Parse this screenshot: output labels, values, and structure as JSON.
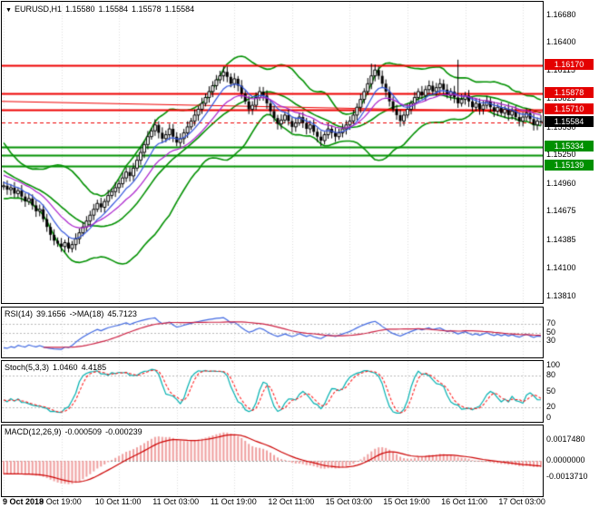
{
  "title": {
    "dropdown_icon": "▼",
    "symbol": "EURUSD,H1",
    "open": "1.15580",
    "high": "1.15584",
    "low": "1.15578",
    "close": "1.15584"
  },
  "panes": {
    "rsi": {
      "name": "RSI(14)",
      "value": "39.1656",
      "ma_name": "->MA(18)",
      "ma_value": "45.7123",
      "axis_labels": [
        "70",
        "50",
        "30"
      ],
      "grid_levels": [
        70,
        50,
        30
      ],
      "range": [
        0,
        100
      ],
      "line_color": "#4169e1",
      "ma_color": "#cc2244"
    },
    "stoch": {
      "name": "Stoch(5,3,3)",
      "value": "1.0460",
      "signal_value": "4.4185",
      "axis_labels": [
        "100",
        "80",
        "50",
        "20",
        "0"
      ],
      "grid_levels": [
        80,
        20
      ],
      "range": [
        0,
        100
      ],
      "k_color": "#00b0b0",
      "d_color": "#ff2222"
    },
    "macd": {
      "name": "MACD(12,26,9)",
      "value": "-0.000509",
      "signal_value": "-0.000239",
      "axis_labels": [
        "0.0017480",
        "0.0000000",
        "-0.0013710"
      ],
      "bar_color": "#ef9f9f",
      "line_color": "#cc0000"
    }
  },
  "chart_data": {
    "type": "candlestick",
    "symbol": "EURUSD",
    "timeframe": "H1",
    "indicators": {
      "rsi_period": 14,
      "rsi_ma_period": 18,
      "stoch": [
        5,
        3,
        3
      ],
      "macd": [
        12,
        26,
        9
      ]
    },
    "time_labels": [
      {
        "text": "9 Oct 2018",
        "i": 0,
        "bold": true
      },
      {
        "text": "9 Oct 19:00",
        "i": 16,
        "bold": false
      },
      {
        "text": "10 Oct 11:00",
        "i": 32,
        "bold": false
      },
      {
        "text": "11 Oct 03:00",
        "i": 48,
        "bold": false
      },
      {
        "text": "11 Oct 19:00",
        "i": 64,
        "bold": false
      },
      {
        "text": "12 Oct 11:00",
        "i": 80,
        "bold": false
      },
      {
        "text": "15 Oct 03:00",
        "i": 96,
        "bold": false
      },
      {
        "text": "15 Oct 19:00",
        "i": 112,
        "bold": false
      },
      {
        "text": "16 Oct 11:00",
        "i": 128,
        "bold": false
      },
      {
        "text": "17 Oct 03:00",
        "i": 144,
        "bold": false
      }
    ],
    "main": {
      "y_range": [
        1.13745,
        1.16815
      ],
      "axis_labels": [
        "1.16680",
        "1.16400",
        "1.16115",
        "1.15825",
        "1.15530",
        "1.15250",
        "1.14960",
        "1.14675",
        "1.14385",
        "1.14100",
        "1.13810"
      ],
      "price_tags": [
        {
          "text": "1.16170",
          "price": 1.1617,
          "bg": "#e40000"
        },
        {
          "text": "1.15878",
          "price": 1.15878,
          "bg": "#e40000"
        },
        {
          "text": "1.15710",
          "price": 1.1571,
          "bg": "#e40000"
        },
        {
          "text": "1.15584",
          "price": 1.15584,
          "bg": "#000000"
        },
        {
          "text": "1.15334",
          "price": 1.15334,
          "bg": "#009000"
        },
        {
          "text": "1.15139",
          "price": 1.15139,
          "bg": "#009000"
        }
      ],
      "levels": [
        {
          "price": 1.1617,
          "color": "#ee0000",
          "width": 2,
          "dash": false
        },
        {
          "price": 1.15878,
          "color": "#ee0000",
          "width": 2,
          "dash": false
        },
        {
          "price": 1.1571,
          "color": "#ee0000",
          "width": 2,
          "dash": false
        },
        {
          "price": 1.15584,
          "color": "#ee0000",
          "width": 1,
          "dash": true
        },
        {
          "price": 1.15334,
          "color": "#009000",
          "width": 2,
          "dash": false
        },
        {
          "price": 1.1525,
          "color": "#009000",
          "width": 2,
          "dash": false
        },
        {
          "price": 1.15139,
          "color": "#009000",
          "width": 2,
          "dash": false
        }
      ],
      "trendline": {
        "p1": 1.158,
        "p2": 1.1569,
        "color": "#ee0000",
        "width": 1
      },
      "bollinger": {
        "period": 20,
        "deviation": 2,
        "color": "#009000",
        "width": 1.6
      },
      "mas": [
        {
          "period": 8,
          "color": "#3355dd"
        },
        {
          "period": 16,
          "color": "#aa22cc"
        }
      ],
      "bull_color": "#ffffff",
      "bear_color": "#000000",
      "wick_color": "#000000",
      "preroll": [
        1.1545,
        1.154,
        1.1536,
        1.153,
        1.1526,
        1.1522,
        1.1518,
        1.1514,
        1.151,
        1.1506,
        1.1503,
        1.1506,
        1.1502,
        1.1499,
        1.1501,
        1.1497,
        1.1499,
        1.1495,
        1.1496,
        1.1493
      ],
      "closes": [
        1.1494,
        1.149,
        1.1492,
        1.1486,
        1.1489,
        1.1483,
        1.1478,
        1.1481,
        1.1474,
        1.1468,
        1.147,
        1.146,
        1.1452,
        1.1444,
        1.1438,
        1.1435,
        1.1432,
        1.1436,
        1.143,
        1.1434,
        1.144,
        1.1446,
        1.1452,
        1.1458,
        1.1464,
        1.147,
        1.1476,
        1.1472,
        1.1478,
        1.1484,
        1.1488,
        1.1492,
        1.1496,
        1.1502,
        1.1508,
        1.1504,
        1.1512,
        1.152,
        1.1528,
        1.1536,
        1.1544,
        1.155,
        1.1556,
        1.1548,
        1.1542,
        1.1546,
        1.1552,
        1.1544,
        1.1538,
        1.1542,
        1.1548,
        1.1554,
        1.156,
        1.1566,
        1.1572,
        1.1578,
        1.1584,
        1.159,
        1.1596,
        1.1602,
        1.1606,
        1.161,
        1.1605,
        1.1598,
        1.1603,
        1.1596,
        1.1588,
        1.158,
        1.1572,
        1.1576,
        1.1584,
        1.159,
        1.1586,
        1.1578,
        1.157,
        1.1563,
        1.1557,
        1.1561,
        1.1566,
        1.156,
        1.1554,
        1.1558,
        1.1564,
        1.1558,
        1.1552,
        1.1556,
        1.1549,
        1.1544,
        1.154,
        1.1546,
        1.1552,
        1.1548,
        1.1544,
        1.1548,
        1.1552,
        1.1556,
        1.156,
        1.1566,
        1.1574,
        1.1582,
        1.159,
        1.1598,
        1.1606,
        1.1612,
        1.1606,
        1.1598,
        1.159,
        1.158,
        1.1572,
        1.1566,
        1.156,
        1.1566,
        1.1572,
        1.1578,
        1.1584,
        1.159,
        1.1586,
        1.1592,
        1.1596,
        1.159,
        1.1594,
        1.1598,
        1.1592,
        1.1586,
        1.159,
        1.1584,
        1.1578,
        1.1582,
        1.1586,
        1.158,
        1.1574,
        1.1578,
        1.1572,
        1.1576,
        1.158,
        1.1574,
        1.157,
        1.1574,
        1.1568,
        1.1572,
        1.1566,
        1.157,
        1.1564,
        1.156,
        1.1564,
        1.1568,
        1.1562,
        1.1556,
        1.156,
        1.15584
      ],
      "wicks": [
        {
          "i": 16,
          "low": 1.14285
        },
        {
          "i": 18,
          "low": 1.1427
        },
        {
          "i": 61,
          "high": 1.16155
        },
        {
          "i": 102,
          "high": 1.16185
        },
        {
          "i": 126,
          "high": 1.16225
        }
      ]
    }
  }
}
